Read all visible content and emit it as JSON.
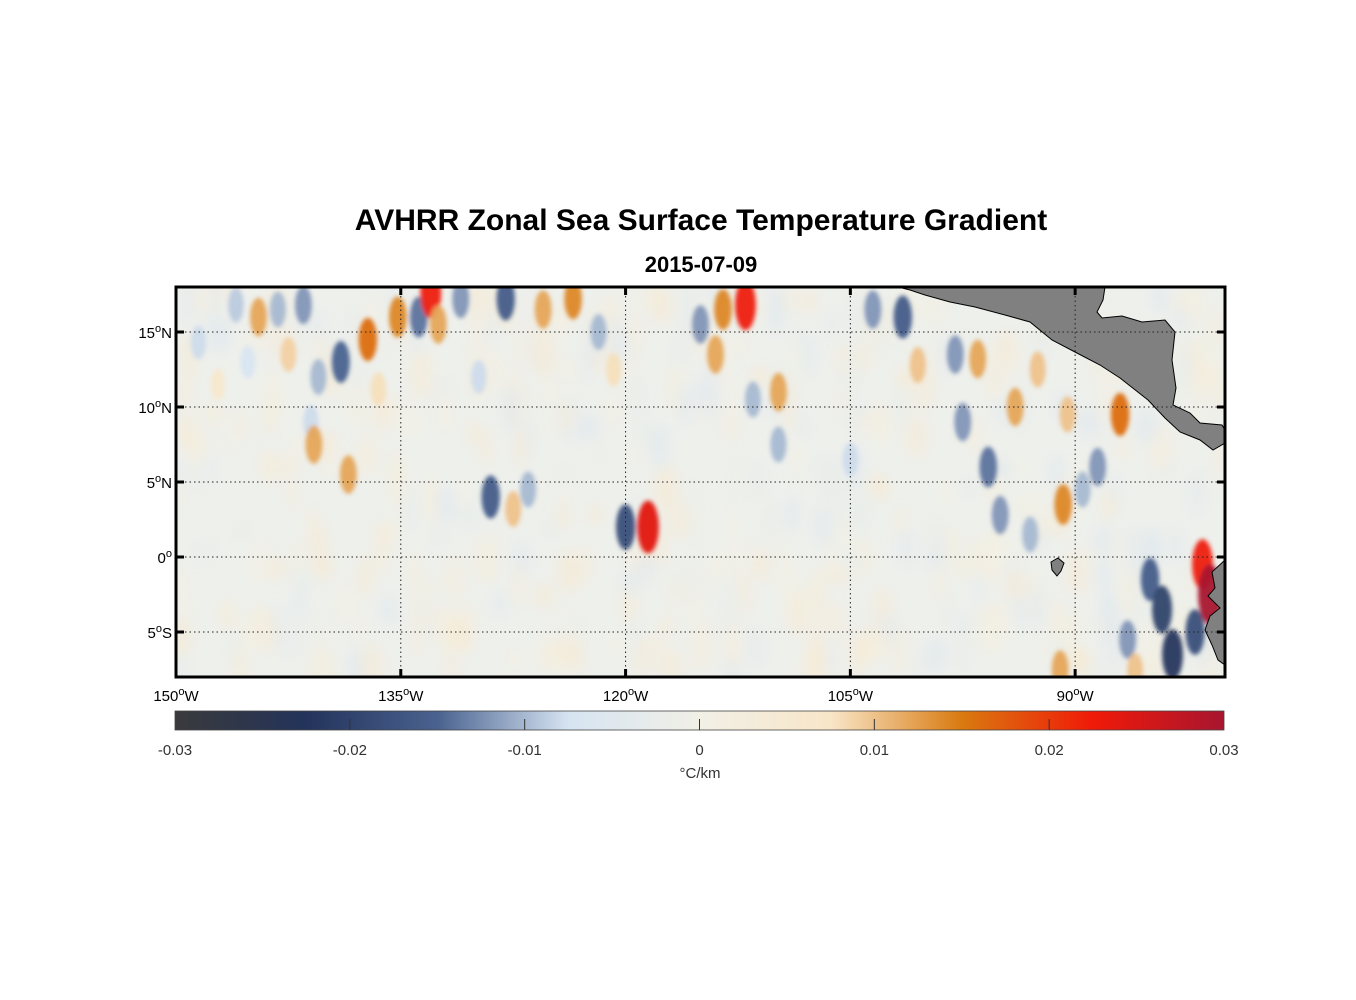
{
  "title": "AVHRR Zonal Sea Surface Temperature Gradient",
  "subtitle": "2015-07-09",
  "lon_range": [
    -150,
    -80
  ],
  "lat_range": [
    -8,
    18
  ],
  "lon_ticks": [
    {
      "value": -150,
      "label": "150",
      "deg": "o",
      "hemi": "W"
    },
    {
      "value": -135,
      "label": "135",
      "deg": "o",
      "hemi": "W"
    },
    {
      "value": -120,
      "label": "120",
      "deg": "o",
      "hemi": "W"
    },
    {
      "value": -105,
      "label": "105",
      "deg": "o",
      "hemi": "W"
    },
    {
      "value": -90,
      "label": "90",
      "deg": "o",
      "hemi": "W"
    }
  ],
  "lat_ticks": [
    {
      "value": 15,
      "label": "15",
      "deg": "o",
      "hemi": "N"
    },
    {
      "value": 10,
      "label": "10",
      "deg": "o",
      "hemi": "N"
    },
    {
      "value": 5,
      "label": "5",
      "deg": "o",
      "hemi": "N"
    },
    {
      "value": 0,
      "label": "0",
      "deg": "o",
      "hemi": ""
    },
    {
      "value": -5,
      "label": "5",
      "deg": "o",
      "hemi": "S"
    }
  ],
  "colorbar": {
    "min": -0.03,
    "max": 0.03,
    "ticks": [
      "-0.03",
      "-0.02",
      "-0.01",
      "0",
      "0.01",
      "0.02",
      "0.03"
    ],
    "tick_values": [
      -0.03,
      -0.02,
      -0.01,
      0,
      0.01,
      0.02,
      0.03
    ],
    "label": "°C/km",
    "colors": [
      "#3a3a3c",
      "#23335a",
      "#4a6290",
      "#d6e4f2",
      "#f2f0e6",
      "#f8e6c8",
      "#d97a10",
      "#f01a08",
      "#a81530"
    ]
  },
  "colors": {
    "land": "#808080",
    "ocean_background": "#eef0ec",
    "negative_strong": "#2c3d68",
    "negative_weak": "#9cb4d8",
    "positive_strong": "#d9600c",
    "positive_extreme": "#e41a0e",
    "positive_weak": "#f3cfa0"
  },
  "features": [
    {
      "lon": -148.5,
      "lat": 14.3,
      "value": -0.008
    },
    {
      "lon": -147.2,
      "lat": 11.5,
      "value": 0.006
    },
    {
      "lon": -146.0,
      "lat": 16.8,
      "value": -0.009
    },
    {
      "lon": -145.2,
      "lat": 13.0,
      "value": -0.007
    },
    {
      "lon": -144.5,
      "lat": 16.0,
      "value": 0.012
    },
    {
      "lon": -143.2,
      "lat": 16.5,
      "value": -0.01
    },
    {
      "lon": -142.5,
      "lat": 13.5,
      "value": 0.009
    },
    {
      "lon": -141.5,
      "lat": 16.8,
      "value": -0.012
    },
    {
      "lon": -141.0,
      "lat": 9.0,
      "value": -0.008
    },
    {
      "lon": -140.5,
      "lat": 12.0,
      "value": -0.01
    },
    {
      "lon": -140.8,
      "lat": 7.5,
      "value": 0.012
    },
    {
      "lon": -139.0,
      "lat": 13.0,
      "value": -0.015
    },
    {
      "lon": -138.5,
      "lat": 5.5,
      "value": 0.012
    },
    {
      "lon": -137.2,
      "lat": 14.5,
      "value": 0.016
    },
    {
      "lon": -136.5,
      "lat": 11.2,
      "value": 0.008
    },
    {
      "lon": -135.2,
      "lat": 16.0,
      "value": 0.014
    },
    {
      "lon": -133.8,
      "lat": 16.0,
      "value": -0.014
    },
    {
      "lon": -133.0,
      "lat": 17.6,
      "value": 0.022
    },
    {
      "lon": -132.5,
      "lat": 15.5,
      "value": 0.012
    },
    {
      "lon": -131.0,
      "lat": 17.2,
      "value": -0.012
    },
    {
      "lon": -129.8,
      "lat": 12.0,
      "value": -0.008
    },
    {
      "lon": -129.0,
      "lat": 4.0,
      "value": -0.016
    },
    {
      "lon": -128.0,
      "lat": 17.2,
      "value": -0.016
    },
    {
      "lon": -127.5,
      "lat": 3.2,
      "value": 0.01
    },
    {
      "lon": -126.5,
      "lat": 4.5,
      "value": -0.01
    },
    {
      "lon": -125.5,
      "lat": 16.5,
      "value": 0.012
    },
    {
      "lon": -123.5,
      "lat": 17.2,
      "value": 0.014
    },
    {
      "lon": -121.8,
      "lat": 15.0,
      "value": -0.01
    },
    {
      "lon": -120.8,
      "lat": 12.5,
      "value": 0.008
    },
    {
      "lon": -120.0,
      "lat": 2.0,
      "value": -0.018
    },
    {
      "lon": -118.5,
      "lat": 2.0,
      "value": 0.024
    },
    {
      "lon": -115.0,
      "lat": 15.5,
      "value": -0.012
    },
    {
      "lon": -114.0,
      "lat": 13.5,
      "value": 0.012
    },
    {
      "lon": -113.5,
      "lat": 16.5,
      "value": 0.014
    },
    {
      "lon": -112.0,
      "lat": 16.8,
      "value": 0.022
    },
    {
      "lon": -111.5,
      "lat": 10.5,
      "value": -0.01
    },
    {
      "lon": -109.8,
      "lat": 11.0,
      "value": 0.012
    },
    {
      "lon": -109.8,
      "lat": 7.5,
      "value": -0.01
    },
    {
      "lon": -105.0,
      "lat": 6.5,
      "value": -0.008
    },
    {
      "lon": -103.5,
      "lat": 16.5,
      "value": -0.012
    },
    {
      "lon": -101.5,
      "lat": 16.0,
      "value": -0.016
    },
    {
      "lon": -100.5,
      "lat": 12.8,
      "value": 0.01
    },
    {
      "lon": -98.0,
      "lat": 13.5,
      "value": -0.012
    },
    {
      "lon": -97.5,
      "lat": 9.0,
      "value": -0.012
    },
    {
      "lon": -96.5,
      "lat": 13.2,
      "value": 0.012
    },
    {
      "lon": -95.8,
      "lat": 6.0,
      "value": -0.014
    },
    {
      "lon": -95.0,
      "lat": 2.8,
      "value": -0.012
    },
    {
      "lon": -94.0,
      "lat": 10.0,
      "value": 0.012
    },
    {
      "lon": -93.0,
      "lat": 1.5,
      "value": -0.01
    },
    {
      "lon": -92.5,
      "lat": 12.5,
      "value": 0.01
    },
    {
      "lon": -90.8,
      "lat": 3.5,
      "value": 0.014
    },
    {
      "lon": -90.5,
      "lat": 9.5,
      "value": 0.01
    },
    {
      "lon": -89.5,
      "lat": 4.5,
      "value": -0.01
    },
    {
      "lon": -88.5,
      "lat": 6.0,
      "value": -0.012
    },
    {
      "lon": -87.0,
      "lat": 9.5,
      "value": 0.016
    },
    {
      "lon": -85.0,
      "lat": -1.5,
      "value": -0.016
    },
    {
      "lon": -84.2,
      "lat": -3.5,
      "value": -0.02
    },
    {
      "lon": -83.5,
      "lat": -6.5,
      "value": -0.022
    },
    {
      "lon": -82.0,
      "lat": -5.0,
      "value": -0.018
    },
    {
      "lon": -81.5,
      "lat": -0.5,
      "value": 0.022
    },
    {
      "lon": -81.0,
      "lat": -2.5,
      "value": 0.03
    },
    {
      "lon": -86.5,
      "lat": -5.5,
      "value": -0.012
    },
    {
      "lon": -91.0,
      "lat": -7.5,
      "value": 0.012
    },
    {
      "lon": -86.0,
      "lat": -7.6,
      "value": 0.01
    }
  ]
}
